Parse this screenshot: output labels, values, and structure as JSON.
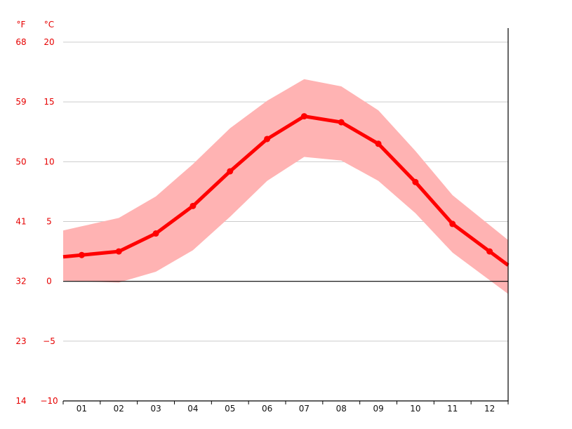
{
  "chart_data": {
    "type": "line",
    "categories": [
      "01",
      "02",
      "03",
      "04",
      "05",
      "06",
      "07",
      "08",
      "09",
      "10",
      "11",
      "12"
    ],
    "series": [
      {
        "values": [
          2.2,
          2.5,
          4.0,
          6.3,
          9.2,
          11.9,
          13.8,
          13.3,
          11.5,
          8.3,
          4.8,
          2.5
        ],
        "band_low": [
          0.0,
          -0.1,
          0.8,
          2.6,
          5.4,
          8.4,
          10.4,
          10.1,
          8.4,
          5.7,
          2.4,
          0.1
        ],
        "band_high": [
          4.6,
          5.3,
          7.1,
          9.8,
          12.8,
          15.1,
          16.9,
          16.3,
          14.3,
          10.9,
          7.2,
          4.7
        ]
      }
    ],
    "unit_f": "°F",
    "unit_c": "°C",
    "yticks_c": [
      "20",
      "15",
      "10",
      "5",
      "0",
      "−5",
      "−10"
    ],
    "yticks_f": [
      "68",
      "59",
      "50",
      "41",
      "32",
      "23",
      "14"
    ],
    "ylim": [
      -10,
      20
    ],
    "grid": true,
    "colors": {
      "line": "#ff0000",
      "band": "#ffb3b3",
      "axis_text": "#e60000",
      "grid": "#cccccc"
    }
  }
}
